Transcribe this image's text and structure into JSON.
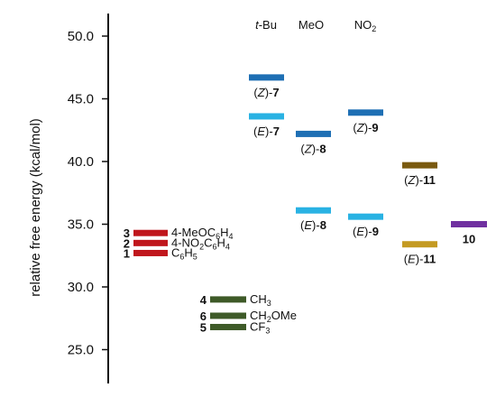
{
  "chart_data": {
    "type": "energy-level-diagram",
    "ylabel": "relative free energy (kcal/mol)",
    "ylim": [
      22.5,
      52
    ],
    "yticks": [
      {
        "value": 50,
        "label": "50.0"
      },
      {
        "value": 45,
        "label": "45.0"
      },
      {
        "value": 40,
        "label": "40.0"
      },
      {
        "value": 35,
        "label": "35.0"
      },
      {
        "value": 30,
        "label": "30.0"
      },
      {
        "value": 25,
        "label": "25.0"
      }
    ],
    "column_headers": [
      {
        "text": "t-Bu",
        "italic_prefix": "t",
        "rest": "-Bu",
        "column": 3
      },
      {
        "text": "MeO",
        "column": 4
      },
      {
        "text": "NO2",
        "main": "NO",
        "sub": "2",
        "column": 5
      }
    ],
    "levels": [
      {
        "column": 1,
        "energy": 34.3,
        "color": "#c0161c",
        "num": "3",
        "subst": [
          {
            "t": "4-MeOC"
          },
          {
            "t": "6",
            "s": "sub"
          },
          {
            "t": "H"
          },
          {
            "t": "4",
            "s": "sub"
          }
        ]
      },
      {
        "column": 1,
        "energy": 33.5,
        "color": "#c0161c",
        "num": "2",
        "subst": [
          {
            "t": "4-NO"
          },
          {
            "t": "2",
            "s": "sub"
          },
          {
            "t": "C"
          },
          {
            "t": "6",
            "s": "sub"
          },
          {
            "t": "H"
          },
          {
            "t": "4",
            "s": "sub"
          }
        ]
      },
      {
        "column": 1,
        "energy": 32.7,
        "color": "#c0161c",
        "num": "1",
        "subst": [
          {
            "t": "C"
          },
          {
            "t": "6",
            "s": "sub"
          },
          {
            "t": "H"
          },
          {
            "t": "5",
            "s": "sub"
          }
        ]
      },
      {
        "column": 2,
        "energy": 29.0,
        "color": "#3e5a28",
        "num": "4",
        "subst": [
          {
            "t": "CH"
          },
          {
            "t": "3",
            "s": "sub"
          }
        ]
      },
      {
        "column": 2,
        "energy": 27.7,
        "color": "#3e5a28",
        "num": "6",
        "subst": [
          {
            "t": "CH"
          },
          {
            "t": "2",
            "s": "sub"
          },
          {
            "t": "OMe"
          }
        ]
      },
      {
        "column": 2,
        "energy": 26.8,
        "color": "#3e5a28",
        "num": "5",
        "subst": [
          {
            "t": "CF"
          },
          {
            "t": "3",
            "s": "sub"
          }
        ]
      },
      {
        "column": 3,
        "energy": 46.7,
        "color": "#1e6fb4",
        "isomer": "Z",
        "num": "7"
      },
      {
        "column": 3,
        "energy": 43.6,
        "color": "#29b2e3",
        "isomer": "E",
        "num": "7"
      },
      {
        "column": 4,
        "energy": 42.2,
        "color": "#1e6fb4",
        "isomer": "Z",
        "num": "8"
      },
      {
        "column": 4,
        "energy": 36.1,
        "color": "#29b2e3",
        "isomer": "E",
        "num": "8"
      },
      {
        "column": 5,
        "energy": 43.9,
        "color": "#1e6fb4",
        "isomer": "Z",
        "num": "9"
      },
      {
        "column": 5,
        "energy": 35.6,
        "color": "#29b2e3",
        "isomer": "E",
        "num": "9"
      },
      {
        "column": 6,
        "energy": 39.7,
        "color": "#7a5a10",
        "isomer": "Z",
        "num": "11"
      },
      {
        "column": 6,
        "energy": 33.4,
        "color": "#c49a22",
        "isomer": "E",
        "num": "11"
      },
      {
        "column": 7,
        "energy": 35.0,
        "color": "#7030a0",
        "num": "10"
      }
    ]
  }
}
